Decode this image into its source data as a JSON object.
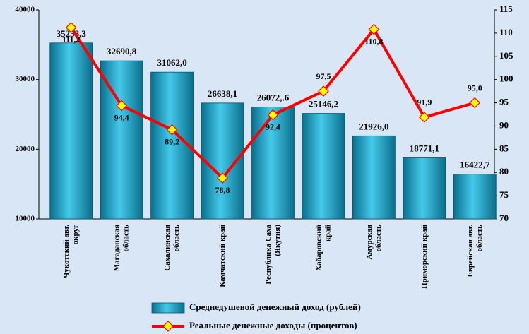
{
  "chart_data": {
    "type": "bar_line",
    "categories": [
      "Чукотский авт.\nокруг",
      "Магаданская\nобласть",
      "Сахалинская\nобласть",
      "Камчатский край",
      "Республика Саха\n(Якутия)",
      "Хабаровский\nкрай",
      "Амурская\nобласть",
      "Приморский край",
      "Еврейская авт.\nобласть"
    ],
    "series": [
      {
        "name": "Среднедушевой денежный доход (рублей)",
        "type": "bar",
        "color": "#19a6cc",
        "values": [
          35258.3,
          32690.8,
          31062.0,
          26638.1,
          26072.6,
          25146.2,
          21926.0,
          18771.1,
          16422.7
        ],
        "value_labels": [
          "35258,3",
          "32690,8",
          "31062,0",
          "26638,1",
          "26072,.6",
          "25146,2",
          "21926,0",
          "18771,1",
          "16422,7"
        ]
      },
      {
        "name": "Реальные денежные доходы (процентов)",
        "type": "line",
        "axis": "y2",
        "color": "#ff0000",
        "marker_color": "#ffff00",
        "values": [
          111.2,
          94.4,
          89.2,
          78.8,
          92.4,
          97.5,
          110.8,
          91.9,
          95.0
        ],
        "value_labels": [
          "111,2",
          "94,4",
          "89,2",
          "78,8",
          "92,4",
          "97,5",
          "110,8",
          "91,9",
          "95,0"
        ]
      }
    ],
    "ylim": [
      10000,
      40000
    ],
    "yticks": [
      10000,
      20000,
      30000,
      40000
    ],
    "y2lim": [
      70,
      115
    ],
    "y2ticks": [
      70,
      75,
      80,
      85,
      90,
      95,
      100,
      105,
      110,
      115
    ],
    "legend": "bottom"
  }
}
